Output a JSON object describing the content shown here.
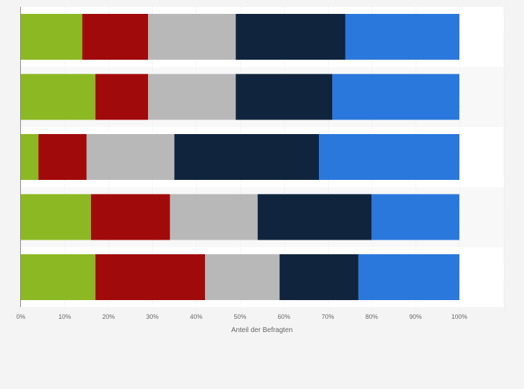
{
  "chart_data": {
    "type": "bar",
    "orientation": "horizontal",
    "stacked": "percent",
    "title": "",
    "xlabel": "Anteil der Befragten",
    "ylabel": "",
    "xlim": [
      0,
      100
    ],
    "x_ticks": [
      0,
      10,
      20,
      30,
      40,
      50,
      60,
      70,
      80,
      90,
      100
    ],
    "x_tick_suffix": "%",
    "grid": true,
    "legend": "none",
    "categories": [
      "",
      "",
      "",
      "",
      ""
    ],
    "series": [
      {
        "color": "#8cb823",
        "values": [
          14,
          17,
          4,
          16,
          17
        ]
      },
      {
        "color": "#a10a0a",
        "values": [
          15,
          12,
          11,
          18,
          25
        ]
      },
      {
        "color": "#b8b8b8",
        "values": [
          20,
          20,
          20,
          20,
          17
        ]
      },
      {
        "color": "#10253d",
        "values": [
          25,
          22,
          33,
          26,
          18
        ]
      },
      {
        "color": "#2a78dc",
        "values": [
          26,
          29,
          32,
          20,
          23
        ]
      }
    ]
  }
}
